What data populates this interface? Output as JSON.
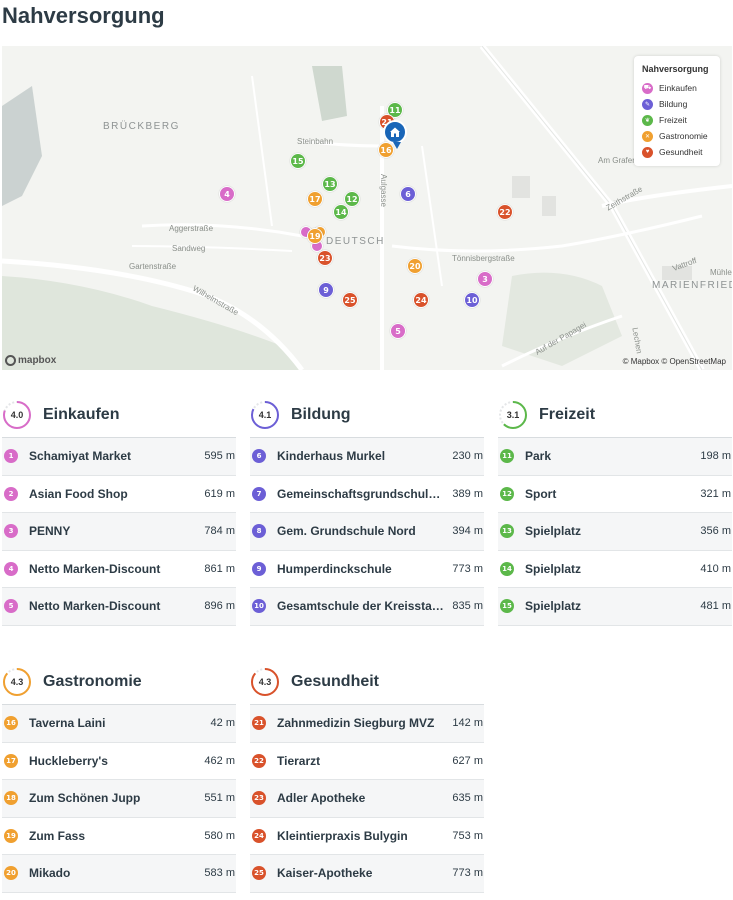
{
  "page_title": "Nahversorgung",
  "colors": {
    "einkaufen": "#d86cc8",
    "bildung": "#6c5fd6",
    "freizeit": "#5cb84a",
    "gastronomie": "#f0a030",
    "gesundheit": "#d9522b",
    "home": "#1a66b8"
  },
  "map": {
    "labels": {
      "brueckberg": "BRÜCKBERG",
      "steinbahn": "Steinbahn",
      "aulgasse": "Aulgasse",
      "aggerstrasse": "Aggerstraße",
      "sandweg": "Sandweg",
      "gartenstrasse": "Gartenstraße",
      "wilhelmstrasse": "Wilhelmstraße",
      "deutsch": "DEUTSCH",
      "tonnisberg": "Tönnisbergstraße",
      "am_grafen": "Am Grafen",
      "zeithstrasse": "Zeithstraße",
      "vattrott": "Vattroff",
      "muhle": "Mühle",
      "marienfried": "MARIENFRIED",
      "papagei": "Auf der Papagei",
      "lechen": "Lechen"
    },
    "legend": {
      "title": "Nahversorgung",
      "items": [
        {
          "label": "Einkaufen",
          "color": "#d86cc8",
          "icon": "cart-icon"
        },
        {
          "label": "Bildung",
          "color": "#6c5fd6",
          "icon": "graduation-cap-icon"
        },
        {
          "label": "Freizeit",
          "color": "#5cb84a",
          "icon": "leaf-icon"
        },
        {
          "label": "Gastronomie",
          "color": "#f0a030",
          "icon": "cutlery-icon"
        },
        {
          "label": "Gesundheit",
          "color": "#d9522b",
          "icon": "heart-icon"
        }
      ]
    },
    "pins": [
      {
        "n": "11",
        "c": "freizeit"
      },
      {
        "n": "21",
        "c": "gesundheit"
      },
      {
        "n": "16",
        "c": "gastronomie"
      },
      {
        "n": "15",
        "c": "freizeit"
      },
      {
        "n": "4",
        "c": "einkaufen"
      },
      {
        "n": "13",
        "c": "freizeit"
      },
      {
        "n": "17",
        "c": "gastronomie"
      },
      {
        "n": "12",
        "c": "freizeit"
      },
      {
        "n": "14",
        "c": "freizeit"
      },
      {
        "n": "6",
        "c": "bildung"
      },
      {
        "n": "22",
        "c": "gesundheit"
      },
      {
        "n": "19",
        "c": "gastronomie"
      },
      {
        "n": "23",
        "c": "gesundheit"
      },
      {
        "n": "20",
        "c": "gastronomie"
      },
      {
        "n": "3",
        "c": "einkaufen"
      },
      {
        "n": "9",
        "c": "bildung"
      },
      {
        "n": "25",
        "c": "gesundheit"
      },
      {
        "n": "24",
        "c": "gesundheit"
      },
      {
        "n": "10",
        "c": "bildung"
      },
      {
        "n": "5",
        "c": "einkaufen"
      }
    ],
    "logo": "mapbox",
    "attribution": "© Mapbox © OpenStreetMap"
  },
  "categories": [
    {
      "key": "einkaufen",
      "title": "Einkaufen",
      "score": "4.0",
      "score_fraction": 0.8,
      "items": [
        {
          "n": "1",
          "name": "Schamiyat Market",
          "dist": "595 m"
        },
        {
          "n": "2",
          "name": "Asian Food Shop",
          "dist": "619 m"
        },
        {
          "n": "3",
          "name": "PENNY",
          "dist": "784 m"
        },
        {
          "n": "4",
          "name": "Netto Marken-Discount",
          "dist": "861 m"
        },
        {
          "n": "5",
          "name": "Netto Marken-Discount",
          "dist": "896 m"
        }
      ]
    },
    {
      "key": "bildung",
      "title": "Bildung",
      "score": "4.1",
      "score_fraction": 0.82,
      "items": [
        {
          "n": "6",
          "name": "Kinderhaus Murkel",
          "dist": "230 m"
        },
        {
          "n": "7",
          "name": "Gemeinschaftsgrundschul…",
          "dist": "389 m"
        },
        {
          "n": "8",
          "name": "Gem. Grundschule Nord",
          "dist": "394 m"
        },
        {
          "n": "9",
          "name": "Humperdinckschule",
          "dist": "773 m"
        },
        {
          "n": "10",
          "name": "Gesamtschule der Kreissta…",
          "dist": "835 m"
        }
      ]
    },
    {
      "key": "freizeit",
      "title": "Freizeit",
      "score": "3.1",
      "score_fraction": 0.62,
      "items": [
        {
          "n": "11",
          "name": "Park",
          "dist": "198 m"
        },
        {
          "n": "12",
          "name": "Sport",
          "dist": "321 m"
        },
        {
          "n": "13",
          "name": "Spielplatz",
          "dist": "356 m"
        },
        {
          "n": "14",
          "name": "Spielplatz",
          "dist": "410 m"
        },
        {
          "n": "15",
          "name": "Spielplatz",
          "dist": "481 m"
        }
      ]
    },
    {
      "key": "gastronomie",
      "title": "Gastronomie",
      "score": "4.3",
      "score_fraction": 0.86,
      "items": [
        {
          "n": "16",
          "name": "Taverna Laini",
          "dist": "42 m"
        },
        {
          "n": "17",
          "name": "Huckleberry's",
          "dist": "462 m"
        },
        {
          "n": "18",
          "name": "Zum Schönen Jupp",
          "dist": "551 m"
        },
        {
          "n": "19",
          "name": "Zum Fass",
          "dist": "580 m"
        },
        {
          "n": "20",
          "name": "Mikado",
          "dist": "583 m"
        }
      ]
    },
    {
      "key": "gesundheit",
      "title": "Gesundheit",
      "score": "4.3",
      "score_fraction": 0.86,
      "items": [
        {
          "n": "21",
          "name": "Zahnmedizin Siegburg MVZ",
          "dist": "142 m"
        },
        {
          "n": "22",
          "name": "Tierarzt",
          "dist": "627 m"
        },
        {
          "n": "23",
          "name": "Adler Apotheke",
          "dist": "635 m"
        },
        {
          "n": "24",
          "name": "Kleintierpraxis Bulygin",
          "dist": "753 m"
        },
        {
          "n": "25",
          "name": "Kaiser-Apotheke",
          "dist": "773 m"
        }
      ]
    }
  ]
}
